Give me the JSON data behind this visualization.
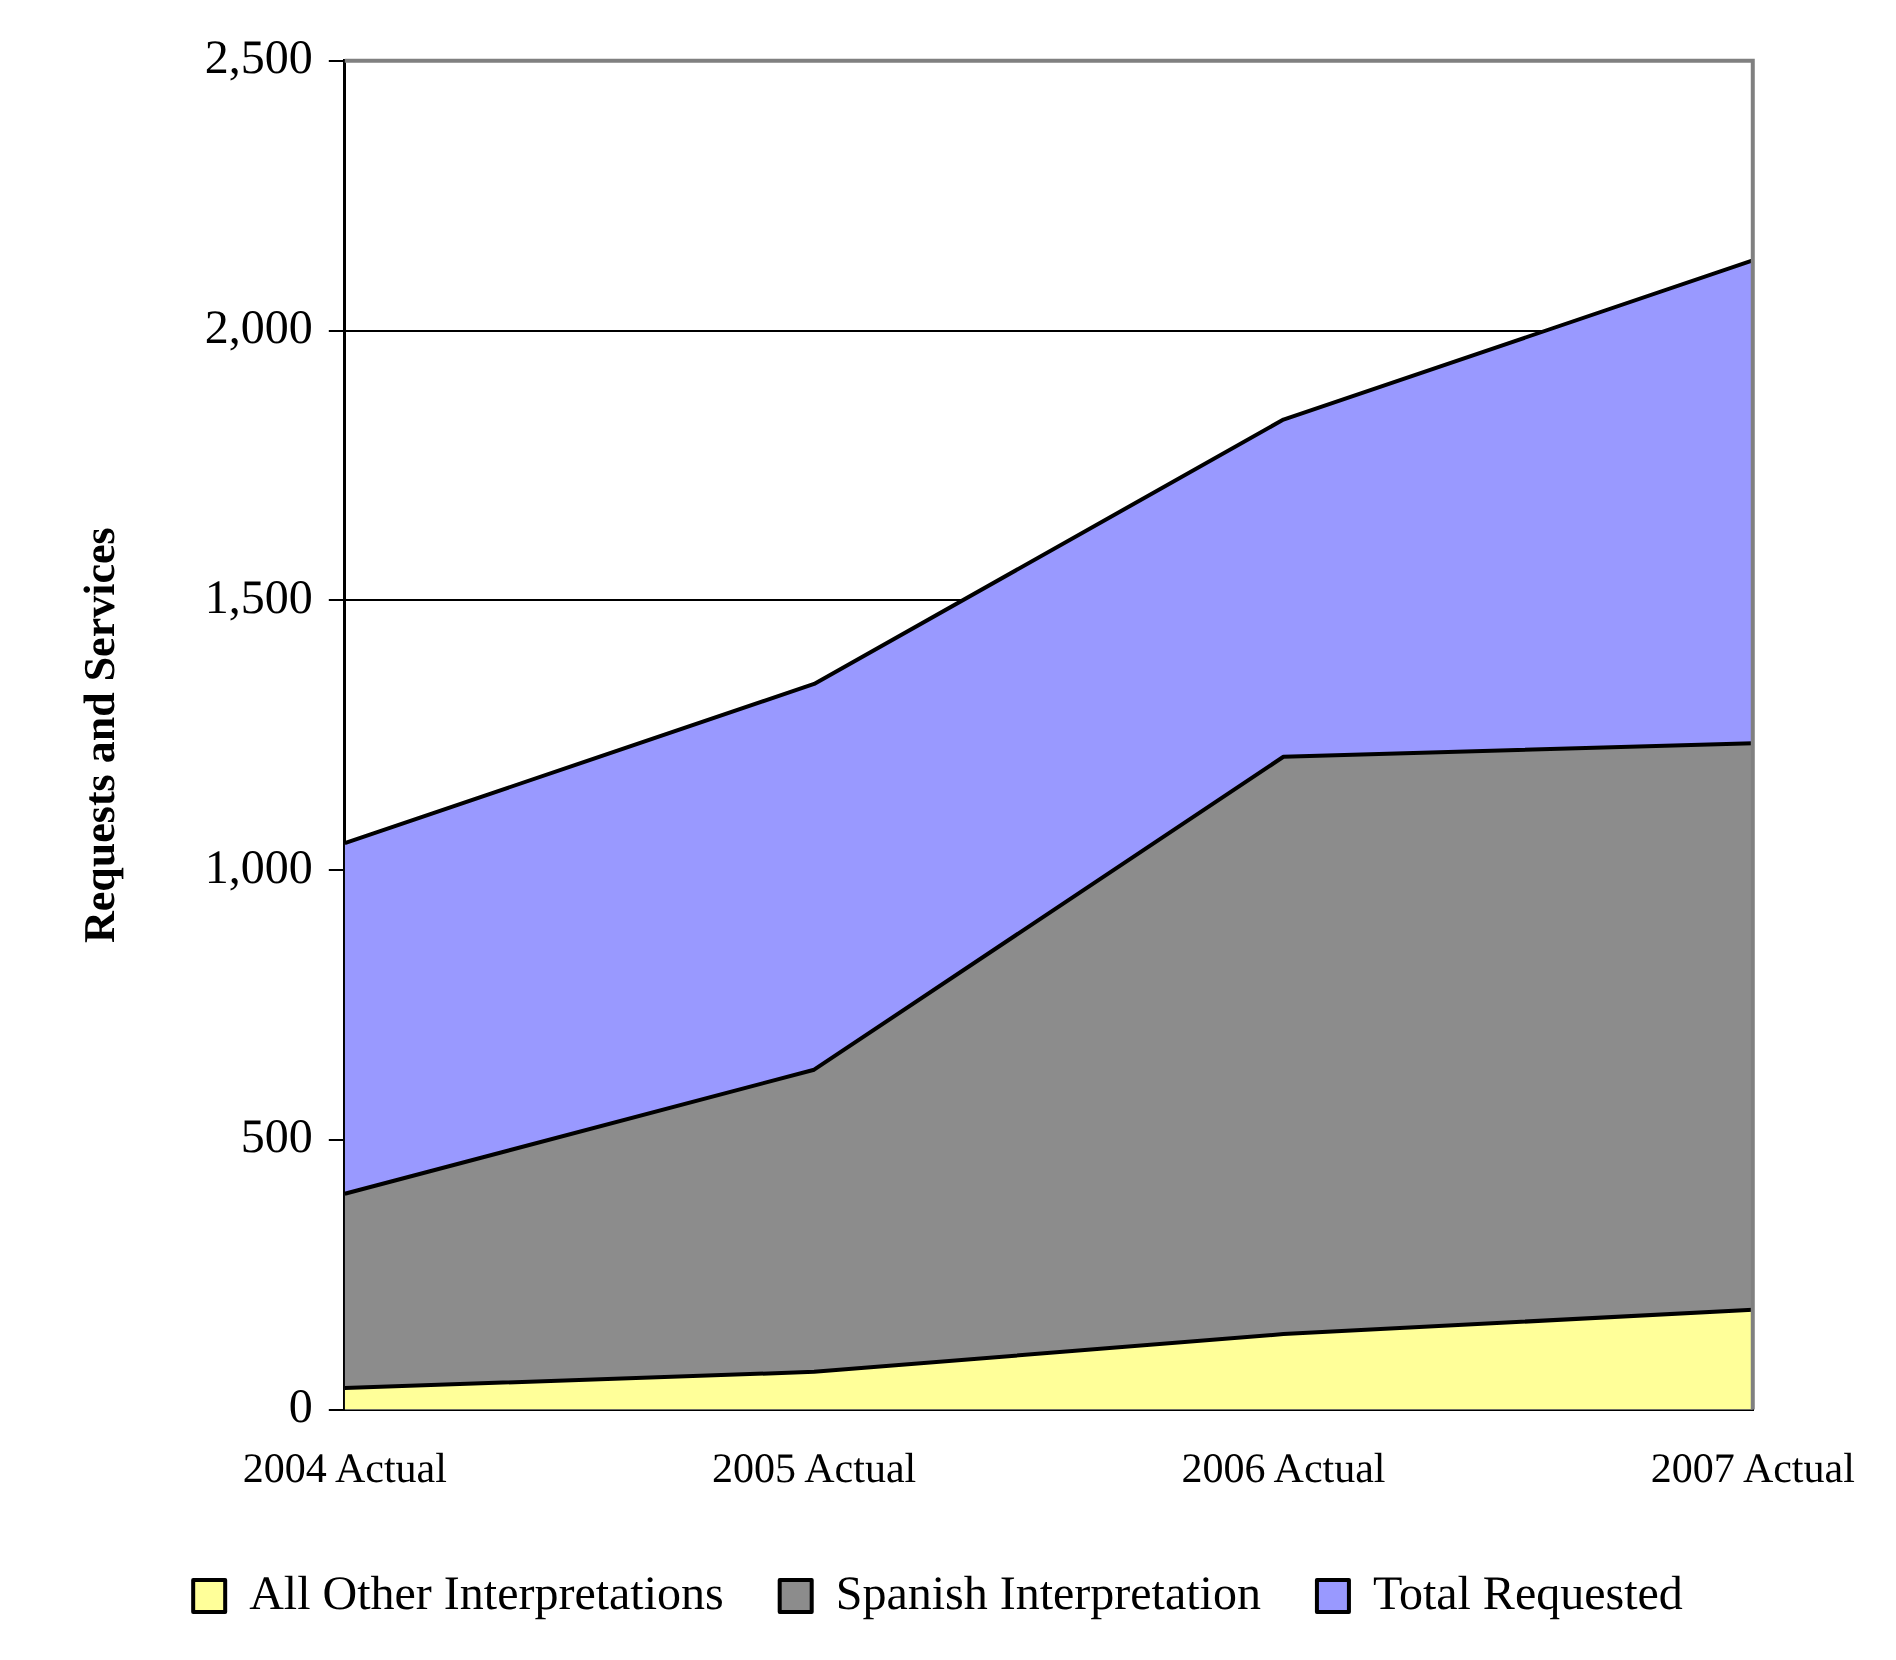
{
  "chart_data": {
    "type": "area",
    "ylabel": "Requests and Services",
    "categories": [
      "2004 Actual",
      "2005 Actual",
      "2006 Actual",
      "2007 Actual"
    ],
    "series": [
      {
        "name": "All Other Interpretations",
        "color": "#ffff99",
        "values": [
          40,
          70,
          140,
          185
        ]
      },
      {
        "name": "Spanish Interpretation",
        "color": "#8c8c8c",
        "values": [
          400,
          630,
          1210,
          1235
        ]
      },
      {
        "name": "Total Requested",
        "color": "#9999ff",
        "values": [
          1050,
          1345,
          1835,
          2130
        ]
      }
    ],
    "ylim": [
      0,
      2500
    ],
    "yticks": [
      0,
      500,
      {
        "value": 1000,
        "label": "1,000"
      },
      {
        "value": 1500,
        "label": "1,500"
      },
      {
        "value": 2000,
        "label": "2,000"
      },
      {
        "value": 2500,
        "label": "2,500"
      }
    ],
    "grid": "y",
    "legend": "bottom"
  }
}
